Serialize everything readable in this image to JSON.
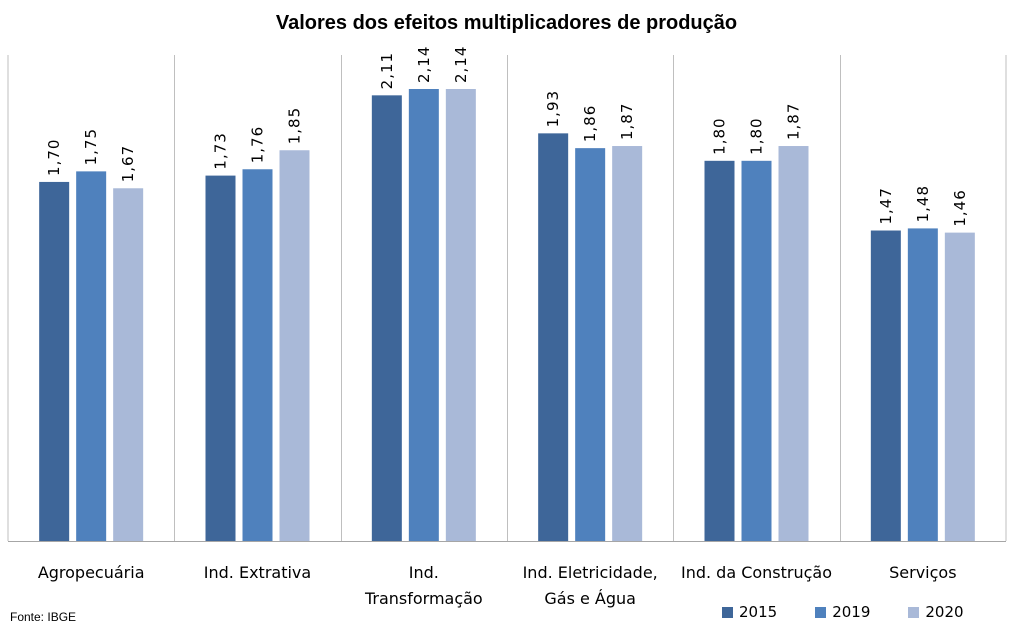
{
  "chart_data": {
    "type": "bar",
    "title": "Valores dos efeitos multiplicadores de produção",
    "categories": [
      [
        "Agropecuária"
      ],
      [
        "Ind. Extrativa"
      ],
      [
        "Ind.",
        "Transformação"
      ],
      [
        "Ind. Eletricidade,",
        "Gás e Água"
      ],
      [
        "Ind. da Construção"
      ],
      [
        "Serviços"
      ]
    ],
    "series": [
      {
        "name": "2015",
        "color": "#3e6699",
        "values": [
          1.7,
          1.73,
          2.11,
          1.93,
          1.8,
          1.47
        ],
        "labels": [
          "1,70",
          "1,73",
          "2,11",
          "1,93",
          "1,80",
          "1,47"
        ]
      },
      {
        "name": "2019",
        "color": "#4f81bd",
        "values": [
          1.75,
          1.76,
          2.14,
          1.86,
          1.8,
          1.48
        ],
        "labels": [
          "1,75",
          "1,76",
          "2,14",
          "1,86",
          "1,80",
          "1,48"
        ]
      },
      {
        "name": "2020",
        "color": "#a9b9d8",
        "values": [
          1.67,
          1.85,
          2.14,
          1.87,
          1.87,
          1.46
        ],
        "labels": [
          "1,67",
          "1,85",
          "2,14",
          "1,87",
          "1,87",
          "1,46"
        ]
      }
    ],
    "ylim": [
      0,
      2.14
    ],
    "grid": false,
    "legend_position": "bottom-right"
  },
  "source": "Fonte: IBGE"
}
